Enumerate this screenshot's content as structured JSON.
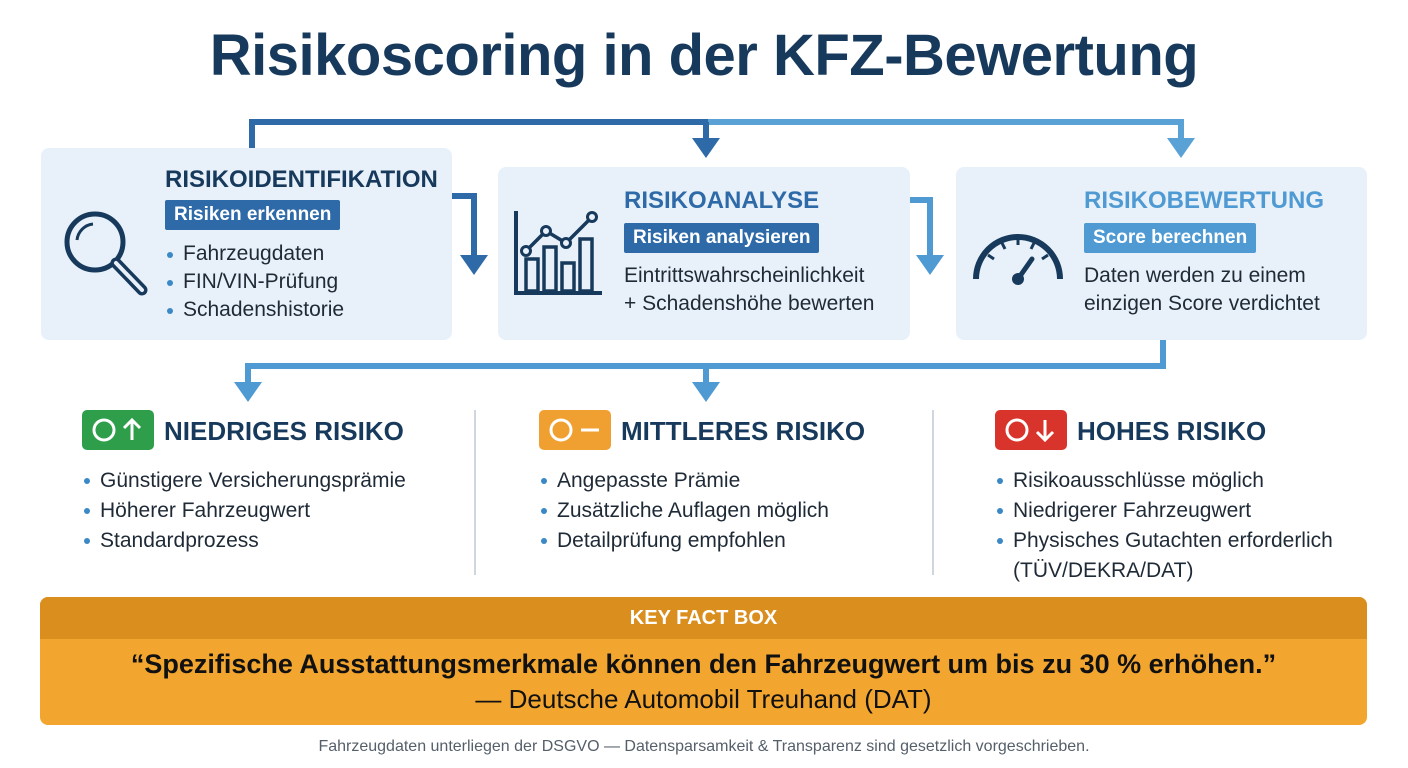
{
  "title": "Risikoscoring in der KFZ-Bewertung",
  "steps": [
    {
      "heading": "RISIKOIDENTIFIKATION",
      "tag": "Risiken erkennen",
      "icon": "magnifier-icon",
      "bullets": [
        "Fahrzeugdaten",
        "FIN/VIN-Prüfung",
        "Schadenshistorie"
      ]
    },
    {
      "heading": "RISIKOANALYSE",
      "tag": "Risiken analysieren",
      "icon": "bar-line-chart-icon",
      "lines": [
        "Eintrittswahrscheinlichkeit",
        "+ Schadenshöhe bewerten"
      ]
    },
    {
      "heading": "RISIKOBEWERTUNG",
      "tag": "Score berechnen",
      "icon": "gauge-icon",
      "lines": [
        "Daten werden zu einem",
        "einzigen Score verdichtet"
      ]
    }
  ],
  "risks": [
    {
      "heading": "NIEDRIGES RISIKO",
      "color": "#2e9e4a",
      "icon": "circle-arrow-up-icon",
      "bullets": [
        "Günstigere Versicherungsprämie",
        "Höherer Fahrzeugwert",
        "Standardprozess"
      ]
    },
    {
      "heading": "MITTLERES RISIKO",
      "color": "#f0a030",
      "icon": "circle-dash-icon",
      "bullets": [
        "Angepasste Prämie",
        "Zusätzliche Auflagen möglich",
        "Detailprüfung empfohlen"
      ]
    },
    {
      "heading": "HOHES RISIKO",
      "color": "#d9342b",
      "icon": "circle-arrow-down-icon",
      "bullets": [
        "Risikoausschlüsse möglich",
        "Niedrigerer Fahrzeugwert",
        "Physisches Gutachten erforderlich",
        "(TÜV/DEKRA/DAT)"
      ]
    }
  ],
  "key_fact": {
    "label": "KEY FACT BOX",
    "quote": "“Spezifische Ausstattungsmerkmale können den Fahrzeugwert um bis zu 30 % erhöhen.”",
    "source": "— Deutsche Automobil Treuhand (DAT)"
  },
  "footer": "Fahrzeugdaten unterliegen der DSGVO — Datensparsamkeit & Transparenz sind gesetzlich vorgeschrieben.",
  "colors": {
    "title": "#173a5c",
    "dark_blue": "#2e6aa8",
    "light_blue": "#4f9ad3",
    "card_bg": "#e8f1f9",
    "factbox_header": "#d98e1e",
    "factbox_body": "#f2a630"
  }
}
